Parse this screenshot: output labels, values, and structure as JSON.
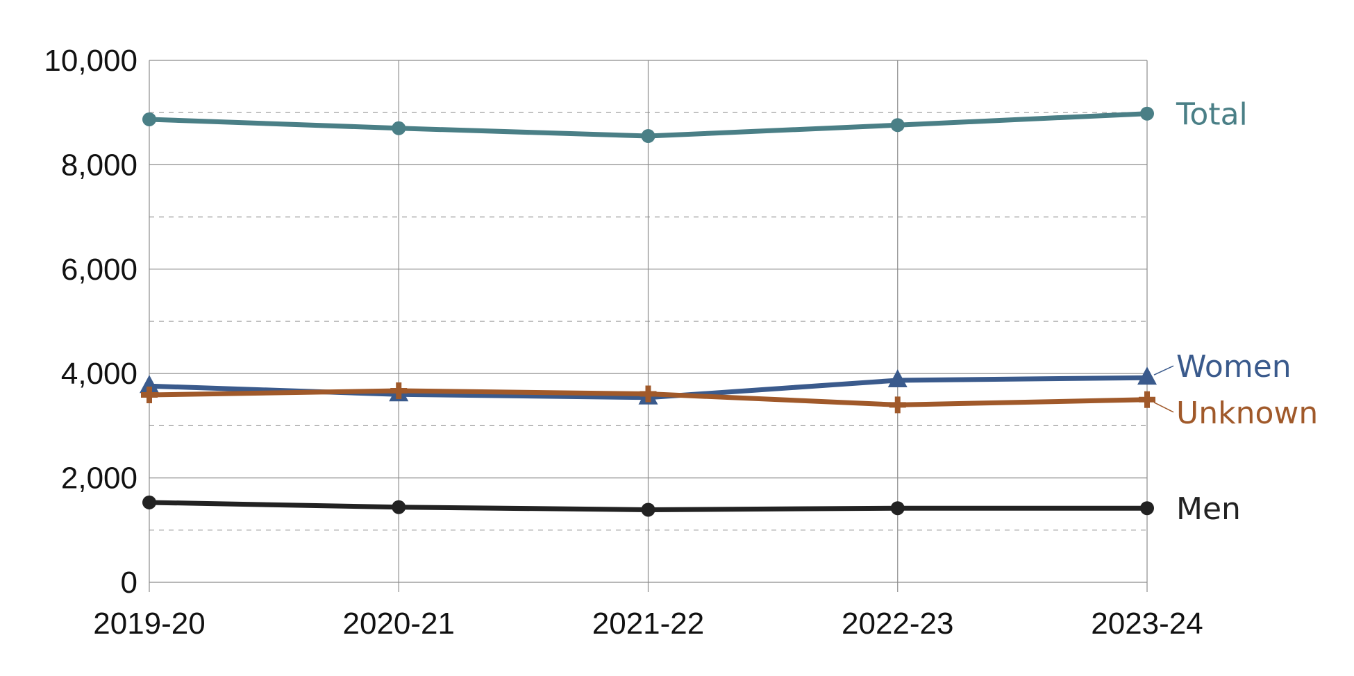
{
  "chart_data": {
    "type": "line",
    "title": "",
    "xlabel": "",
    "ylabel": "",
    "categories": [
      "2019-20",
      "2020-21",
      "2021-22",
      "2022-23",
      "2023-24"
    ],
    "ylim": [
      0,
      10000
    ],
    "yticks": [
      0,
      2000,
      4000,
      6000,
      8000,
      10000
    ],
    "ytick_labels": [
      "0",
      "2,000",
      "4,000",
      "6,000",
      "8,000",
      "10,000"
    ],
    "minor_gridlines": [
      1000,
      3000,
      5000,
      7000,
      9000
    ],
    "grid": true,
    "legend": "direct labels at right end of each line",
    "series": [
      {
        "name": "Total",
        "values": [
          8870,
          8700,
          8550,
          8760,
          8980
        ],
        "color": "#4a7f86",
        "marker": "circle"
      },
      {
        "name": "Women",
        "values": [
          3760,
          3600,
          3540,
          3870,
          3920
        ],
        "color": "#3a5a8c",
        "marker": "triangle"
      },
      {
        "name": "Unknown",
        "values": [
          3590,
          3670,
          3610,
          3400,
          3500
        ],
        "color": "#a0592a",
        "marker": "plus"
      },
      {
        "name": "Men",
        "values": [
          1530,
          1440,
          1390,
          1420,
          1420
        ],
        "color": "#222222",
        "marker": "circle"
      }
    ]
  }
}
